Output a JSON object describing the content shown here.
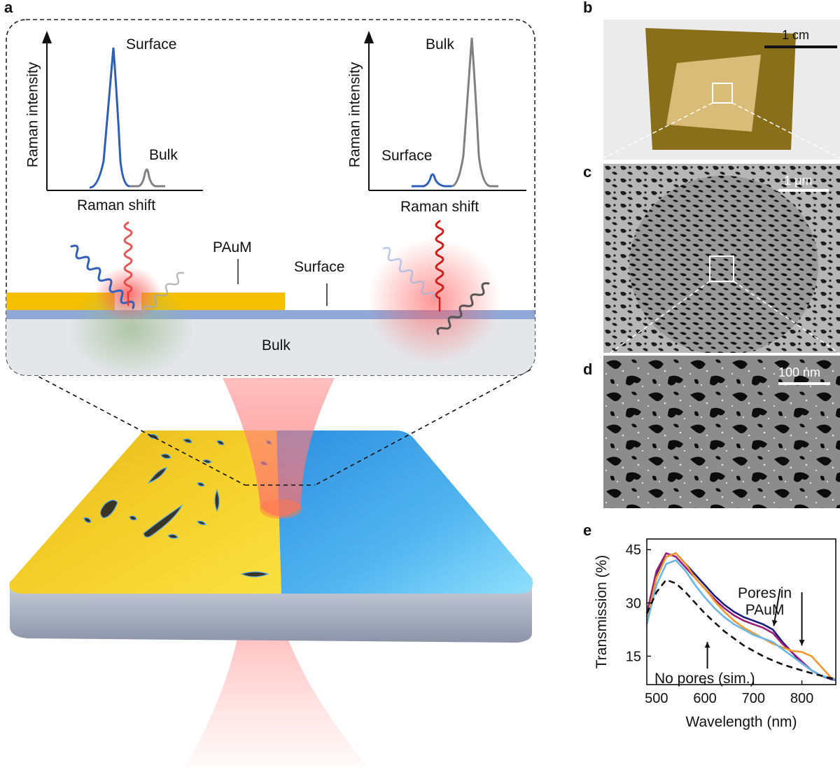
{
  "figure": {
    "panel_letters": {
      "a": "a",
      "b": "b",
      "c": "c",
      "d": "d",
      "e": "e"
    }
  },
  "panel_a": {
    "inset": {
      "left_plot": {
        "ylabel": "Raman intensity",
        "xlabel": "Raman shift",
        "peak_labels": {
          "tall": "Surface",
          "small": "Bulk"
        }
      },
      "right_plot": {
        "ylabel": "Raman intensity",
        "xlabel": "Raman shift",
        "peak_labels": {
          "tall": "Bulk",
          "small": "Surface"
        }
      },
      "layer_labels": {
        "paum": "PAuM",
        "surface": "Surface",
        "bulk": "Bulk"
      }
    },
    "colors": {
      "gold": "#f5c000",
      "surface_layer": "#8fa8d8",
      "bulk_layer": "#e4e6ea",
      "laser": "#ff6b6b",
      "blue_wave": "#2f5fb8",
      "gray_wave": "#7a7a7a"
    }
  },
  "panel_b": {
    "scalebar": "1 cm"
  },
  "panel_c": {
    "scalebar": "1 μm"
  },
  "panel_d": {
    "scalebar": "100 nm"
  },
  "panel_e": {
    "annotations": {
      "pores": "Pores in\nPAuM",
      "pores_line1": "Pores in",
      "pores_line2": "PAuM",
      "no_pores": "No pores (sim.)"
    },
    "chart_data": {
      "type": "line",
      "xlabel": "Wavelength (nm)",
      "ylabel": "Transmission (%)",
      "xlim": [
        480,
        870
      ],
      "ylim": [
        7,
        48
      ],
      "xticks": [
        500,
        600,
        700,
        800
      ],
      "yticks": [
        15,
        30,
        45
      ],
      "series": [
        {
          "color": "#1a1a7a",
          "style": "solid",
          "x": [
            480,
            500,
            520,
            540,
            560,
            580,
            600,
            620,
            640,
            660,
            680,
            700,
            720,
            740,
            760,
            780,
            800,
            820,
            840,
            860,
            870
          ],
          "y": [
            26,
            38,
            43,
            44,
            41,
            38,
            35,
            32,
            29.5,
            27.5,
            26,
            25,
            24,
            22.5,
            19,
            16,
            13,
            11,
            9.5,
            8.5,
            8.3
          ]
        },
        {
          "color": "#9a1e7a",
          "style": "solid",
          "x": [
            480,
            500,
            520,
            540,
            560,
            580,
            600,
            620,
            640,
            660,
            680,
            700,
            720,
            740,
            760,
            780,
            800,
            820,
            840,
            860,
            870
          ],
          "y": [
            27,
            39,
            44,
            43,
            40,
            37,
            34,
            31,
            28.5,
            26.5,
            25,
            24,
            23,
            21.5,
            18.5,
            16,
            13.5,
            11,
            9.5,
            8.7,
            8.4
          ]
        },
        {
          "color": "#f29a2e",
          "style": "solid",
          "x": [
            480,
            500,
            520,
            540,
            560,
            580,
            600,
            620,
            640,
            660,
            680,
            700,
            720,
            740,
            760,
            780,
            800,
            820,
            840,
            860,
            870
          ],
          "y": [
            25,
            37,
            43,
            44,
            41,
            37,
            34,
            30.5,
            27.5,
            25,
            23,
            21.5,
            20,
            18.5,
            17.5,
            16.5,
            16.2,
            15,
            12,
            9,
            8.5
          ]
        },
        {
          "color": "#6ab8e8",
          "style": "solid",
          "x": [
            480,
            500,
            520,
            540,
            560,
            580,
            600,
            620,
            640,
            660,
            680,
            700,
            720,
            740,
            760,
            780,
            800,
            820,
            840,
            860,
            870
          ],
          "y": [
            24,
            35,
            41,
            42,
            39,
            35,
            31.5,
            28.5,
            26,
            24,
            22.5,
            21,
            20,
            19,
            17,
            15,
            13,
            11,
            9.5,
            8.8,
            8.5
          ]
        },
        {
          "color": "#111111",
          "style": "dashed",
          "x": [
            480,
            500,
            520,
            540,
            560,
            580,
            600,
            620,
            640,
            660,
            680,
            700,
            720,
            740,
            760,
            780,
            800,
            820,
            840,
            860,
            870
          ],
          "y": [
            27,
            33,
            36.5,
            35.5,
            33,
            30,
            27,
            24.5,
            22,
            20,
            18,
            16.5,
            15,
            13.8,
            12.7,
            11.8,
            11,
            10.2,
            9.5,
            8.8,
            8.5
          ]
        }
      ]
    }
  }
}
